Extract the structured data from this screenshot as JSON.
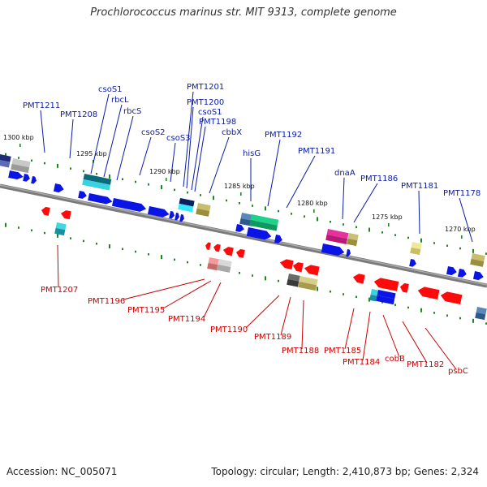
{
  "title": "Prochlorococcus marinus str. MIT 9313, complete genome",
  "footer": {
    "accession": "Accession: NC_005071",
    "summary": "Topology: circular; Length: 2,410,873 bp; Genes: 2,324"
  },
  "colors": {
    "backbone": "#7a7a7a",
    "forward_label": "#0a1aa8",
    "reverse_label": "#cc0000",
    "forward_gene": "#0a14e6",
    "reverse_gene": "#ff0a0a",
    "tick": "#1a8a1a"
  },
  "kbp_marks": [
    "1300 kbp",
    "1295 kbp",
    "1290 kbp",
    "1285 kbp",
    "1280 kbp",
    "1275 kbp",
    "1270 kbp"
  ],
  "forward_labels": [
    "PMT1211",
    "PMT1208",
    "csoS1",
    "rbcL",
    "rbcS",
    "csoS2",
    "csoS3",
    "PMT1201",
    "PMT1200",
    "csoS1",
    "PMT1198",
    "cbbX",
    "hisG",
    "PMT1192",
    "PMT1191",
    "dnaA",
    "PMT1186",
    "PMT1181",
    "PMT1178"
  ],
  "reverse_labels": [
    "PMT1207",
    "PMT1196",
    "PMT1195",
    "PMT1194",
    "PMT1190",
    "PMT1189",
    "PMT1188",
    "PMT1185",
    "PMT1184",
    "cobB",
    "PMT1182",
    "psbC"
  ]
}
